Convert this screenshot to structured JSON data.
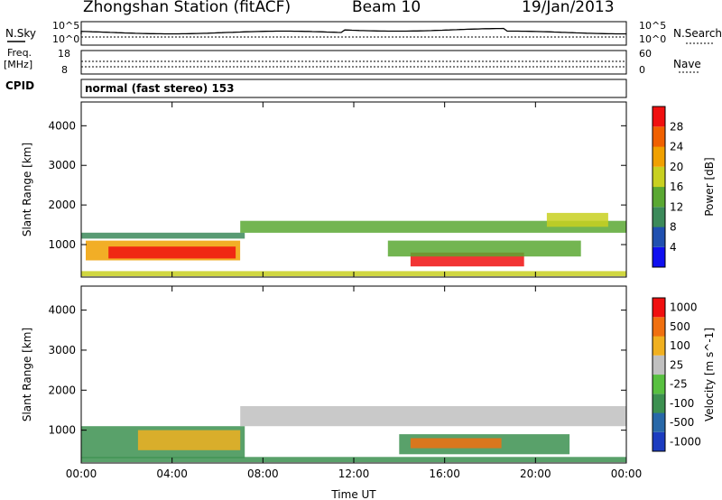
{
  "header": {
    "station": "Zhongshan Station (fitACF)",
    "beam": "Beam 10",
    "date": "19/Jan/2013"
  },
  "top_panels": {
    "nsky_label": "N.Sky",
    "nsearch_label": "N.Search",
    "freq_label_line1": "Freq.",
    "freq_label_line2": "[MHz]",
    "nave_label": "Nave",
    "cpid_label": "CPID",
    "cpid_value": "normal (fast stereo) 153",
    "noise_ticks_left": [
      "10^5",
      "10^0"
    ],
    "noise_ticks_right": [
      "10^5",
      "10^0"
    ],
    "freq_ticks": [
      "18",
      "8"
    ],
    "nave_ticks": [
      "60",
      "0"
    ]
  },
  "chart_data": [
    {
      "type": "heatmap",
      "name": "power",
      "ylabel": "Slant Range [km]",
      "xlabel": "",
      "xlim": [
        0,
        24
      ],
      "ylim": [
        180,
        4600
      ],
      "xticks": [
        "00:00",
        "04:00",
        "08:00",
        "12:00",
        "16:00",
        "20:00",
        "00:00"
      ],
      "yticks": [
        1000,
        2000,
        3000,
        4000
      ],
      "colorbar": {
        "label": "Power [dB]",
        "ticks": [
          "4",
          "8",
          "12",
          "16",
          "20",
          "24",
          "28"
        ],
        "colors": [
          "#1010f0",
          "#2050b0",
          "#3c8a5a",
          "#5aa832",
          "#c8d020",
          "#f0a000",
          "#f06000",
          "#f01010"
        ]
      },
      "bands": [
        {
          "t0": 0.0,
          "t1": 7.2,
          "r0": 1150,
          "r1": 1300,
          "level": 2
        },
        {
          "t0": 0.2,
          "t1": 7.0,
          "r0": 600,
          "r1": 1100,
          "level": 5
        },
        {
          "t0": 1.2,
          "t1": 6.8,
          "r0": 650,
          "r1": 950,
          "level": 7
        },
        {
          "t0": 0.0,
          "t1": 24.0,
          "r0": 200,
          "r1": 330,
          "level": 4
        },
        {
          "t0": 7.0,
          "t1": 24.0,
          "r0": 1300,
          "r1": 1600,
          "level": 3
        },
        {
          "t0": 14.5,
          "t1": 19.5,
          "r0": 450,
          "r1": 800,
          "level": 7
        },
        {
          "t0": 13.5,
          "t1": 22.0,
          "r0": 700,
          "r1": 1100,
          "level": 3
        },
        {
          "t0": 20.5,
          "t1": 23.2,
          "r0": 1450,
          "r1": 1800,
          "level": 4
        }
      ]
    },
    {
      "type": "heatmap",
      "name": "velocity",
      "ylabel": "Slant Range [km]",
      "xlabel": "Time UT",
      "xlim": [
        0,
        24
      ],
      "ylim": [
        180,
        4600
      ],
      "xticks": [
        "00:00",
        "04:00",
        "08:00",
        "12:00",
        "16:00",
        "20:00",
        "00:00"
      ],
      "yticks": [
        1000,
        2000,
        3000,
        4000
      ],
      "colorbar": {
        "label": "Velocity [m s^-1]",
        "ticks": [
          "1000",
          "500",
          "100",
          "25",
          "-25",
          "-100",
          "-500",
          "-1000"
        ],
        "colors": [
          "#1c3cc0",
          "#2868a8",
          "#3c9050",
          "#58c040",
          "#c0c0c0",
          "#f0b020",
          "#f07010",
          "#f01010"
        ]
      },
      "bands": [
        {
          "t0": 0.0,
          "t1": 7.2,
          "r0": 300,
          "r1": 1100,
          "level": 2
        },
        {
          "t0": 2.5,
          "t1": 7.0,
          "r0": 500,
          "r1": 1000,
          "level": 5
        },
        {
          "t0": 7.0,
          "t1": 24.0,
          "r0": 1100,
          "r1": 1600,
          "level": 4
        },
        {
          "t0": 14.0,
          "t1": 21.5,
          "r0": 400,
          "r1": 900,
          "level": 2
        },
        {
          "t0": 14.5,
          "t1": 18.5,
          "r0": 550,
          "r1": 800,
          "level": 6
        },
        {
          "t0": 0.0,
          "t1": 24.0,
          "r0": 200,
          "r1": 330,
          "level": 2
        }
      ]
    }
  ]
}
